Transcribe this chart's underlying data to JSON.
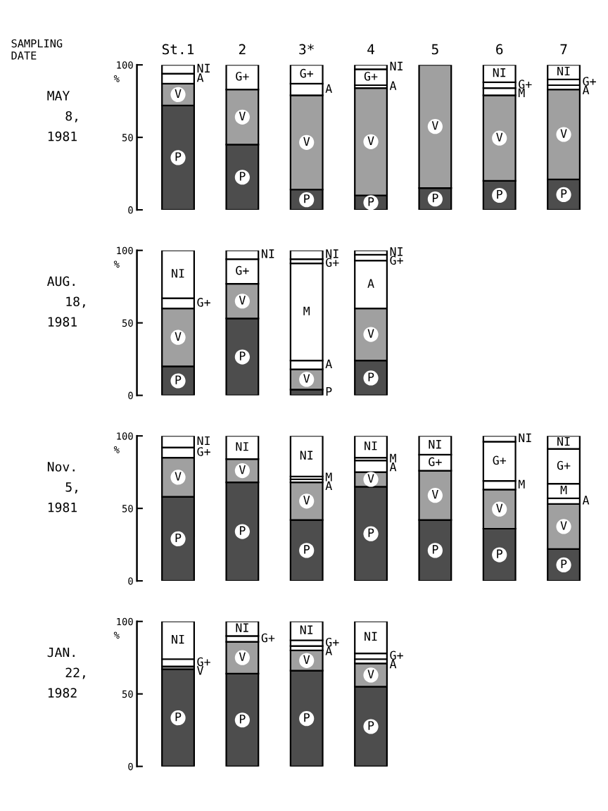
{
  "chart_data": [
    {
      "type": "bar",
      "stacked": true,
      "title": "MAY 8, 1981",
      "ylabel": "%",
      "annotations": [
        "SAMPLING DATE"
      ],
      "categories": [
        "St.1",
        "2",
        "3*",
        "4",
        "5",
        "6",
        "7"
      ],
      "ylim": [
        0,
        100
      ],
      "yticks": [
        0,
        50,
        100
      ],
      "series": [
        {
          "name": "P",
          "color": "#4d4d4d",
          "values": [
            72,
            45,
            14,
            10,
            15,
            20,
            21
          ]
        },
        {
          "name": "V",
          "color": "#a0a0a0",
          "values": [
            15,
            38,
            65,
            74,
            85,
            59,
            62
          ]
        },
        {
          "name": "A",
          "color": "#ffffff",
          "values": [
            7,
            null,
            8,
            2,
            null,
            null,
            3
          ]
        },
        {
          "name": "M",
          "color": "#ffffff",
          "values": [
            null,
            null,
            null,
            null,
            null,
            5,
            null
          ]
        },
        {
          "name": "G+",
          "color": "#ffffff",
          "values": [
            null,
            17,
            13,
            11,
            null,
            4,
            4
          ]
        },
        {
          "name": "NI",
          "color": "#ffffff",
          "values": [
            6,
            null,
            null,
            3,
            null,
            12,
            10
          ]
        }
      ]
    },
    {
      "type": "bar",
      "stacked": true,
      "title": "AUG. 18, 1981",
      "ylabel": "%",
      "tick_labels": "y",
      "categories": [
        null,
        null,
        null,
        null
      ],
      "ylim": [
        0,
        100
      ],
      "yticks": [
        0,
        50,
        100
      ],
      "series": [
        {
          "name": "P",
          "color": "#4d4d4d",
          "values": [
            20,
            53,
            4,
            24
          ]
        },
        {
          "name": "V",
          "color": "#a0a0a0",
          "values": [
            40,
            24,
            14,
            36
          ]
        },
        {
          "name": "A",
          "color": "#ffffff",
          "values": [
            null,
            null,
            6,
            33
          ]
        },
        {
          "name": "M",
          "color": "#ffffff",
          "values": [
            null,
            null,
            67,
            null
          ]
        },
        {
          "name": "G+",
          "color": "#ffffff",
          "values": [
            7,
            17,
            3,
            4
          ]
        },
        {
          "name": "NI",
          "color": "#ffffff",
          "values": [
            33,
            6,
            6,
            3
          ]
        }
      ]
    },
    {
      "type": "bar",
      "stacked": true,
      "title": "Nov. 5, 1981",
      "ylabel": "%",
      "tick_labels": "y",
      "categories": [
        null,
        null,
        null,
        null,
        null,
        null,
        null
      ],
      "ylim": [
        0,
        100
      ],
      "yticks": [
        0,
        50,
        100
      ],
      "series": [
        {
          "name": "P",
          "color": "#4d4d4d",
          "values": [
            58,
            68,
            42,
            65,
            42,
            36,
            22
          ]
        },
        {
          "name": "V",
          "color": "#a0a0a0",
          "values": [
            27,
            16,
            26,
            10,
            34,
            27,
            31
          ]
        },
        {
          "name": "A",
          "color": "#ffffff",
          "values": [
            null,
            null,
            2,
            8,
            null,
            null,
            4
          ]
        },
        {
          "name": "M",
          "color": "#ffffff",
          "values": [
            null,
            null,
            2,
            2,
            null,
            6,
            10
          ]
        },
        {
          "name": "G+",
          "color": "#ffffff",
          "values": [
            7,
            null,
            null,
            null,
            11,
            27,
            24
          ]
        },
        {
          "name": "NI",
          "color": "#ffffff",
          "values": [
            8,
            16,
            28,
            15,
            13,
            4,
            9
          ]
        }
      ]
    },
    {
      "type": "bar",
      "stacked": true,
      "title": "JAN. 22, 1982",
      "ylabel": "%",
      "tick_labels": "y",
      "categories": [
        null,
        null,
        null,
        null
      ],
      "ylim": [
        0,
        100
      ],
      "yticks": [
        0,
        50,
        100
      ],
      "series": [
        {
          "name": "P",
          "color": "#4d4d4d",
          "values": [
            67,
            64,
            66,
            55
          ]
        },
        {
          "name": "V",
          "color": "#a0a0a0",
          "values": [
            2,
            22,
            14,
            16
          ]
        },
        {
          "name": "A",
          "color": "#ffffff",
          "values": [
            null,
            null,
            3,
            3
          ]
        },
        {
          "name": "G+",
          "color": "#ffffff",
          "values": [
            5,
            4,
            4,
            4
          ]
        },
        {
          "name": "NI",
          "color": "#ffffff",
          "values": [
            26,
            10,
            13,
            22
          ]
        }
      ]
    }
  ]
}
